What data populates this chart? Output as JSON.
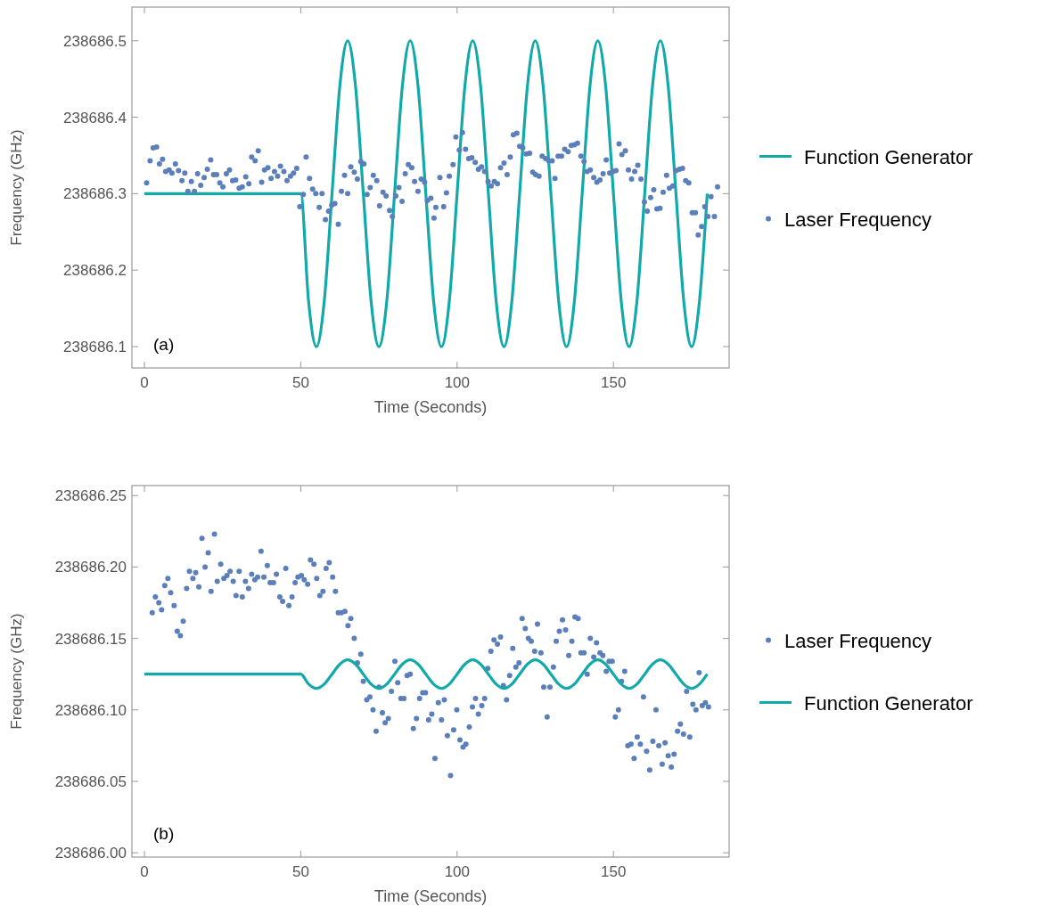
{
  "chart_data": [
    {
      "type": "scatter",
      "xlabel": "Time (Seconds)",
      "ylabel": "Frequency (GHz)",
      "annotations": [
        "(a)"
      ],
      "xlim": [
        -4,
        187
      ],
      "xticks": [
        0,
        50,
        100,
        150
      ],
      "ylim": [
        238686.072,
        238686.544
      ],
      "yticks": [
        238686.1,
        238686.2,
        238686.3,
        238686.4,
        238686.5
      ],
      "grid": false,
      "legend": "right",
      "series": [
        {
          "type": "line",
          "name": "Function Generator",
          "color": "#12a9a9",
          "line_style": "solid",
          "x": [
            0,
            50,
            52.5,
            55,
            57.5,
            60,
            62.5,
            65,
            67.5,
            70,
            72.5,
            75,
            77.5,
            80,
            82.5,
            85,
            87.5,
            90,
            92.5,
            95,
            97.5,
            100,
            102.5,
            105,
            107.5,
            110,
            112.5,
            115,
            117.5,
            120,
            122.5,
            125,
            127.5,
            130,
            132.5,
            135,
            137.5,
            140,
            142.5,
            145,
            147.5,
            150,
            152.5,
            155,
            157.5,
            160,
            162.5,
            165,
            167.5,
            170,
            172.5,
            175,
            177.5,
            180
          ],
          "values": [
            238686.3,
            238686.3,
            238686.159,
            238686.1,
            238686.159,
            238686.3,
            238686.441,
            238686.5,
            238686.441,
            238686.3,
            238686.159,
            238686.1,
            238686.159,
            238686.3,
            238686.441,
            238686.5,
            238686.441,
            238686.3,
            238686.159,
            238686.1,
            238686.159,
            238686.3,
            238686.441,
            238686.5,
            238686.441,
            238686.3,
            238686.159,
            238686.1,
            238686.159,
            238686.3,
            238686.441,
            238686.5,
            238686.441,
            238686.3,
            238686.159,
            238686.1,
            238686.159,
            238686.3,
            238686.441,
            238686.5,
            238686.441,
            238686.3,
            238686.159,
            238686.1,
            238686.159,
            238686.3,
            238686.441,
            238686.5,
            238686.441,
            238686.3,
            238686.159,
            238686.1,
            238686.159,
            238686.3
          ]
        },
        {
          "type": "scatter",
          "name": "Laser Frequency",
          "color": "#5b7fba",
          "marker": "circle",
          "x": [
            0.7,
            1.8,
            2.8,
            3.9,
            4.8,
            5.8,
            6.8,
            7.9,
            8.8,
            9.9,
            10.9,
            12.0,
            12.9,
            13.9,
            15.0,
            16.0,
            17.0,
            18.0,
            19.1,
            20.1,
            21.2,
            22.1,
            23.1,
            24.1,
            25.1,
            26.2,
            27.2,
            28.2,
            29.2,
            30.3,
            31.3,
            32.4,
            33.4,
            34.3,
            35.4,
            36.4,
            37.5,
            38.4,
            39.5,
            40.5,
            41.6,
            42.6,
            43.5,
            44.6,
            45.6,
            46.7,
            47.7,
            48.7,
            49.7,
            50.8,
            51.7,
            52.8,
            53.8,
            54.8,
            55.9,
            56.8,
            57.9,
            58.9,
            59.9,
            60.9,
            62.0,
            63.0,
            64.0,
            65.0,
            66.0,
            67.1,
            68.1,
            69.2,
            70.2,
            71.2,
            72.2,
            73.2,
            74.3,
            75.2,
            76.3,
            77.3,
            78.4,
            79.3,
            80.4,
            81.4,
            82.4,
            83.4,
            84.4,
            85.5,
            86.4,
            87.5,
            88.5,
            89.6,
            90.5,
            91.6,
            92.6,
            93.2,
            94.5,
            95.7,
            96.6,
            97.5,
            98.7,
            99.6,
            100.7,
            101.7,
            102.7,
            103.7,
            104.7,
            105.8,
            106.8,
            107.8,
            108.8,
            109.9,
            110.9,
            111.9,
            112.9,
            113.9,
            115.0,
            116.0,
            117.0,
            118.0,
            119.1,
            120.0,
            121.0,
            122.1,
            123.2,
            124.2,
            125.1,
            126.2,
            127.2,
            128.3,
            129.3,
            130.4,
            131.3,
            132.3,
            133.4,
            134.4,
            135.5,
            136.5,
            137.5,
            138.5,
            139.6,
            140.6,
            141.6,
            142.6,
            143.7,
            144.7,
            145.7,
            146.7,
            147.7,
            148.8,
            149.8,
            150.8,
            151.8,
            152.7,
            153.8,
            154.8,
            155.8,
            156.8,
            157.8,
            158.8,
            159.9,
            160.8,
            161.9,
            162.9,
            163.9,
            164.9,
            165.9,
            167.0,
            167.9,
            169.0,
            170.0,
            171.1,
            172.1,
            173.1,
            174.1,
            175.2,
            176.2,
            177.1,
            178.2,
            179.2,
            180.2,
            181.2,
            182.3,
            183.3
          ],
          "values": [
            238686.314,
            238686.343,
            238686.36,
            238686.361,
            238686.339,
            238686.345,
            238686.329,
            238686.331,
            238686.327,
            238686.339,
            238686.33,
            238686.317,
            238686.327,
            238686.303,
            238686.316,
            238686.303,
            238686.326,
            238686.311,
            238686.321,
            238686.332,
            238686.344,
            238686.325,
            238686.325,
            238686.314,
            238686.309,
            238686.326,
            238686.331,
            238686.317,
            238686.318,
            238686.307,
            238686.309,
            238686.322,
            238686.313,
            238686.348,
            238686.343,
            238686.356,
            238686.315,
            238686.331,
            238686.334,
            238686.32,
            238686.329,
            238686.323,
            238686.336,
            238686.329,
            238686.317,
            238686.323,
            238686.327,
            238686.333,
            238686.283,
            238686.299,
            238686.348,
            238686.32,
            238686.306,
            238686.3,
            238686.282,
            238686.3,
            238686.266,
            238686.277,
            238686.285,
            238686.287,
            238686.26,
            238686.303,
            238686.324,
            238686.3,
            238686.335,
            238686.328,
            238686.319,
            238686.342,
            238686.339,
            238686.299,
            238686.308,
            238686.324,
            238686.317,
            238686.284,
            238686.302,
            238686.297,
            238686.278,
            238686.27,
            238686.297,
            238686.308,
            238686.29,
            238686.326,
            238686.338,
            238686.334,
            238686.316,
            238686.303,
            238686.319,
            238686.315,
            238686.291,
            238686.294,
            238686.268,
            238686.282,
            238686.321,
            238686.283,
            238686.301,
            238686.323,
            238686.338,
            238686.374,
            238686.357,
            238686.38,
            238686.358,
            238686.346,
            238686.347,
            238686.341,
            238686.332,
            238686.335,
            238686.329,
            238686.316,
            238686.31,
            238686.316,
            238686.313,
            238686.334,
            238686.34,
            238686.325,
            238686.348,
            238686.377,
            238686.379,
            238686.362,
            238686.36,
            238686.352,
            238686.353,
            238686.328,
            238686.325,
            238686.323,
            238686.349,
            238686.346,
            238686.343,
            238686.343,
            238686.32,
            238686.349,
            238686.349,
            238686.358,
            238686.355,
            238686.363,
            238686.364,
            238686.366,
            238686.349,
            238686.342,
            238686.329,
            238686.331,
            238686.321,
            238686.315,
            238686.318,
            238686.326,
            238686.344,
            238686.327,
            238686.329,
            238686.33,
            238686.365,
            238686.351,
            238686.356,
            238686.331,
            238686.319,
            238686.329,
            238686.337,
            238686.319,
            238686.289,
            238686.277,
            238686.295,
            238686.305,
            238686.28,
            238686.281,
            238686.302,
            238686.324,
            238686.307,
            238686.31,
            238686.33,
            238686.332,
            238686.333,
            238686.317,
            238686.314,
            238686.275,
            238686.275,
            238686.246,
            238686.257,
            238686.283,
            238686.27,
            238686.296,
            238686.27,
            238686.309
          ]
        }
      ]
    },
    {
      "type": "scatter",
      "xlabel": "Time (Seconds)",
      "ylabel": "Frequency (GHz)",
      "annotations": [
        "(b)"
      ],
      "xlim": [
        -4,
        187
      ],
      "xticks": [
        0,
        50,
        100,
        150
      ],
      "ylim": [
        238685.997,
        238686.257
      ],
      "yticks": [
        {
          "value": 238686.0,
          "label": "238686.00"
        },
        238686.05,
        {
          "value": 238686.1,
          "label": "238686.10"
        },
        238686.15,
        {
          "value": 238686.2,
          "label": "238686.20"
        },
        238686.25
      ],
      "grid": false,
      "legend": "right",
      "series": [
        {
          "type": "scatter",
          "name": "Laser Frequency",
          "color": "#5b7fba",
          "marker": "circle",
          "x": [
            2.5,
            3.5,
            4.6,
            5.5,
            6.5,
            7.5,
            8.4,
            9.5,
            10.5,
            11.5,
            12.4,
            13.5,
            14.4,
            15.5,
            16.4,
            17.4,
            18.4,
            19.4,
            20.4,
            21.3,
            22.4,
            23.3,
            24.4,
            25.4,
            26.4,
            27.4,
            28.4,
            29.3,
            30.3,
            31.3,
            32.3,
            33.3,
            34.3,
            35.3,
            36.2,
            37.3,
            38.2,
            39.3,
            40.2,
            41.3,
            42.2,
            43.3,
            44.2,
            45.2,
            46.2,
            47.2,
            48.2,
            49.1,
            50.2,
            51.1,
            52.2,
            53.1,
            54.2,
            55.1,
            56.1,
            57.1,
            58.1,
            59.1,
            60.2,
            61.1,
            62.0,
            63.0,
            64.1,
            65.1,
            66.0,
            67.1,
            68.1,
            69.2,
            70.0,
            71.1,
            72.1,
            73.1,
            74.1,
            75.0,
            76.1,
            77.0,
            78.0,
            79.0,
            80.1,
            81.0,
            82.0,
            83.0,
            84.0,
            85.0,
            86.0,
            87.0,
            88.0,
            89.0,
            89.9,
            90.9,
            91.9,
            92.9,
            94.0,
            95.0,
            95.9,
            96.9,
            97.9,
            98.9,
            99.9,
            100.9,
            101.9,
            102.8,
            103.9,
            104.9,
            105.9,
            106.8,
            107.9,
            108.8,
            109.8,
            110.8,
            111.8,
            112.9,
            113.9,
            114.8,
            115.8,
            116.8,
            117.8,
            118.8,
            119.8,
            120.8,
            121.8,
            122.8,
            123.7,
            124.8,
            125.7,
            126.8,
            127.7,
            128.8,
            129.7,
            130.8,
            131.7,
            132.7,
            133.7,
            134.7,
            135.7,
            136.7,
            137.7,
            138.7,
            139.6,
            140.6,
            141.6,
            142.6,
            143.7,
            144.6,
            145.7,
            146.6,
            147.7,
            148.6,
            149.6,
            150.6,
            151.6,
            152.6,
            153.6,
            154.6,
            155.6,
            156.6,
            157.6,
            158.6,
            159.6,
            160.6,
            161.6,
            162.6,
            163.6,
            164.5,
            165.6,
            166.5,
            167.5,
            168.5,
            169.4,
            170.5,
            171.4,
            172.4,
            173.4,
            174.4,
            175.4,
            176.4,
            177.4,
            178.4,
            179.4,
            180.4
          ],
          "values": [
            238686.168,
            238686.179,
            238686.175,
            238686.17,
            238686.187,
            238686.192,
            238686.182,
            238686.173,
            238686.155,
            238686.152,
            238686.162,
            238686.185,
            238686.197,
            238686.192,
            238686.196,
            238686.186,
            238686.22,
            238686.2,
            238686.21,
            238686.183,
            238686.223,
            238686.19,
            238686.202,
            238686.192,
            238686.194,
            238686.197,
            238686.19,
            238686.18,
            238686.197,
            238686.179,
            238686.19,
            238686.185,
            238686.195,
            238686.191,
            238686.193,
            238686.211,
            238686.193,
            238686.201,
            238686.189,
            238686.189,
            238686.195,
            238686.179,
            238686.176,
            238686.199,
            238686.173,
            238686.179,
            238686.189,
            238686.193,
            238686.194,
            238686.191,
            238686.188,
            238686.205,
            238686.202,
            238686.192,
            238686.18,
            238686.183,
            238686.199,
            238686.203,
            238686.193,
            238686.183,
            238686.168,
            238686.168,
            238686.169,
            238686.159,
            238686.164,
            238686.15,
            238686.133,
            238686.139,
            238686.12,
            238686.107,
            238686.109,
            238686.1,
            238686.085,
            238686.116,
            238686.098,
            238686.091,
            238686.094,
            238686.113,
            238686.134,
            238686.119,
            238686.108,
            238686.108,
            238686.124,
            238686.125,
            238686.087,
            238686.094,
            238686.108,
            238686.112,
            238686.112,
            238686.093,
            238686.097,
            238686.066,
            238686.105,
            238686.093,
            238686.107,
            238686.082,
            238686.054,
            238686.086,
            238686.1,
            238686.079,
            238686.074,
            238686.076,
            238686.088,
            238686.102,
            238686.108,
            238686.097,
            238686.103,
            238686.108,
            238686.129,
            238686.141,
            238686.149,
            238686.146,
            238686.151,
            238686.117,
            238686.107,
            238686.124,
            238686.143,
            238686.13,
            238686.133,
            238686.164,
            238686.157,
            238686.15,
            238686.148,
            238686.141,
            238686.16,
            238686.14,
            238686.116,
            238686.095,
            238686.116,
            238686.13,
            238686.148,
            238686.155,
            238686.163,
            238686.156,
            238686.138,
            238686.148,
            238686.165,
            238686.164,
            238686.14,
            238686.14,
            238686.125,
            238686.15,
            238686.137,
            238686.147,
            238686.14,
            238686.138,
            238686.127,
            238686.134,
            238686.134,
            238686.095,
            238686.1,
            238686.12,
            238686.127,
            238686.075,
            238686.076,
            238686.066,
            238686.081,
            238686.076,
            238686.109,
            238686.071,
            238686.058,
            238686.078,
            238686.1,
            238686.075,
            238686.062,
            238686.077,
            238686.068,
            238686.06,
            238686.069,
            238686.085,
            238686.09,
            238686.083,
            238686.113,
            238686.081,
            238686.104,
            238686.1,
            238686.126,
            238686.103,
            238686.105,
            238686.102
          ]
        },
        {
          "type": "line",
          "name": "Function Generator",
          "color": "#12a9a9",
          "line_style": "solid",
          "x": [
            0,
            50,
            52.5,
            55,
            57.5,
            60,
            62.5,
            65,
            67.5,
            70,
            72.5,
            75,
            77.5,
            80,
            82.5,
            85,
            87.5,
            90,
            92.5,
            95,
            97.5,
            100,
            102.5,
            105,
            107.5,
            110,
            112.5,
            115,
            117.5,
            120,
            122.5,
            125,
            127.5,
            130,
            132.5,
            135,
            137.5,
            140,
            142.5,
            145,
            147.5,
            150,
            152.5,
            155,
            157.5,
            160,
            162.5,
            165,
            167.5,
            170,
            172.5,
            175,
            177.5,
            180
          ],
          "values": [
            238686.125,
            238686.125,
            238686.118,
            238686.115,
            238686.118,
            238686.125,
            238686.132,
            238686.135,
            238686.132,
            238686.125,
            238686.118,
            238686.115,
            238686.118,
            238686.125,
            238686.132,
            238686.135,
            238686.132,
            238686.125,
            238686.118,
            238686.115,
            238686.118,
            238686.125,
            238686.132,
            238686.135,
            238686.132,
            238686.125,
            238686.118,
            238686.115,
            238686.118,
            238686.125,
            238686.132,
            238686.135,
            238686.132,
            238686.125,
            238686.118,
            238686.115,
            238686.118,
            238686.125,
            238686.132,
            238686.135,
            238686.132,
            238686.125,
            238686.118,
            238686.115,
            238686.118,
            238686.125,
            238686.132,
            238686.135,
            238686.132,
            238686.125,
            238686.118,
            238686.115,
            238686.118,
            238686.125
          ]
        }
      ]
    }
  ]
}
